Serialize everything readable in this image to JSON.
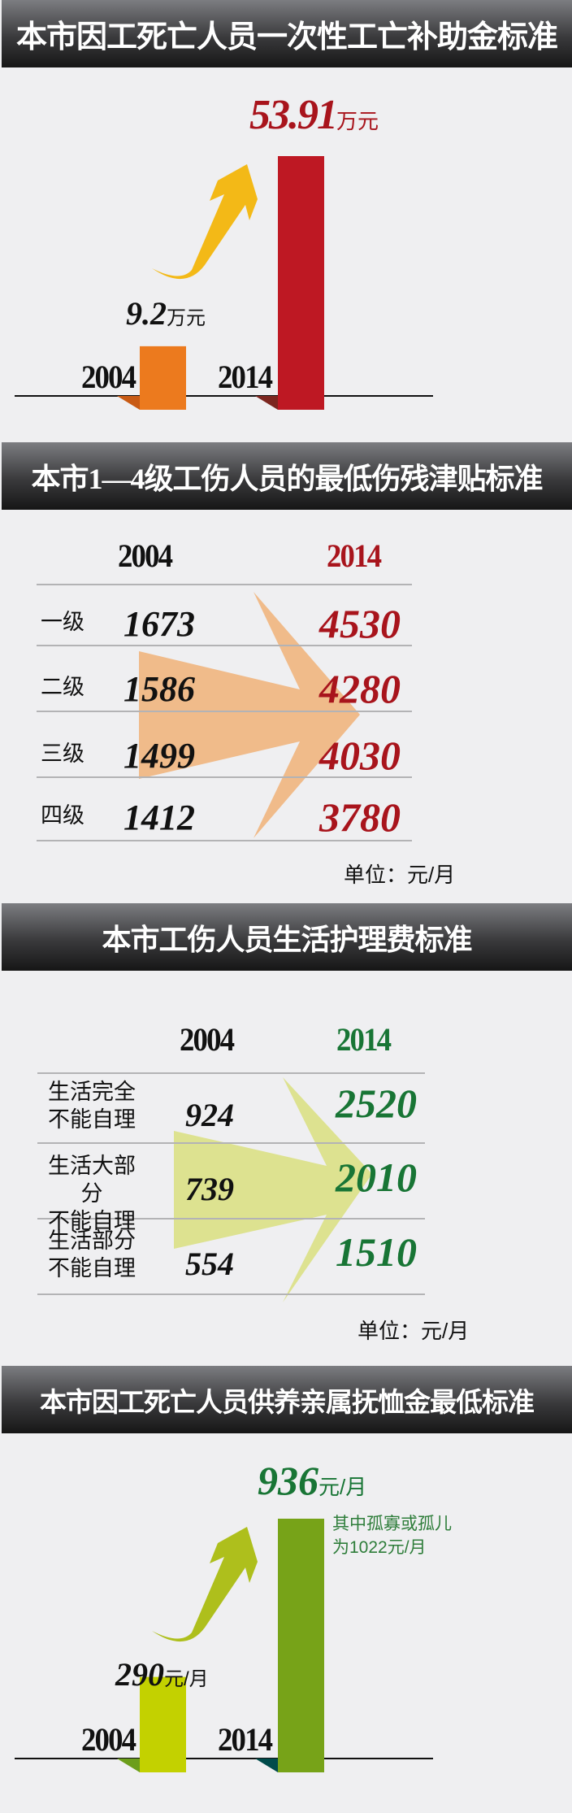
{
  "colors": {
    "bar2004_s1": "#ec7a1e",
    "bar2014_s1": "#be1823",
    "arrow_s1": "#f3b917",
    "red_text": "#a8141c",
    "arrow_s2": "#f0bb8a",
    "green_text": "#187535",
    "arrow_s3": "#dde290",
    "bar2004_s4": "#c3d100",
    "bar2014_s4": "#77a318",
    "arrow_s4": "#aebf1c"
  },
  "chart_data": [
    {
      "type": "bar",
      "title": "本市因工死亡人员一次性工亡补助金标准",
      "categories": [
        "2004",
        "2014"
      ],
      "values": [
        9.2,
        53.91
      ],
      "unit": "万元",
      "labels": [
        "9.2",
        "53.91"
      ],
      "icons": [
        "up-arrow"
      ]
    },
    {
      "type": "table",
      "title": "本市1—4级工伤人员的最低伤残津贴标准",
      "columns": [
        "2004",
        "2014"
      ],
      "rows": [
        {
          "label": "一级",
          "v2004": "1673",
          "v2014": "4530"
        },
        {
          "label": "二级",
          "v2004": "1586",
          "v2014": "4280"
        },
        {
          "label": "三级",
          "v2004": "1499",
          "v2014": "4030"
        },
        {
          "label": "四级",
          "v2004": "1412",
          "v2014": "3780"
        }
      ],
      "unit_note": "单位：元/月"
    },
    {
      "type": "table",
      "title": "本市工伤人员生活护理费标准",
      "columns": [
        "2004",
        "2014"
      ],
      "rows": [
        {
          "label1": "生活完全",
          "label2": "不能自理",
          "v2004": "924",
          "v2014": "2520"
        },
        {
          "label1": "生活大部分",
          "label2": "不能自理",
          "v2004": "739",
          "v2014": "2010"
        },
        {
          "label1": "生活部分",
          "label2": "不能自理",
          "v2004": "554",
          "v2014": "1510"
        }
      ],
      "unit_note": "单位：元/月"
    },
    {
      "type": "bar",
      "title": "本市因工死亡人员供养亲属抚恤金最低标准",
      "categories": [
        "2004",
        "2014"
      ],
      "values": [
        290,
        936
      ],
      "unit": "元/月",
      "labels": [
        "290",
        "936"
      ],
      "annotation_line1": "其中孤寡或孤儿",
      "annotation_line2": "为1022元/月"
    }
  ]
}
